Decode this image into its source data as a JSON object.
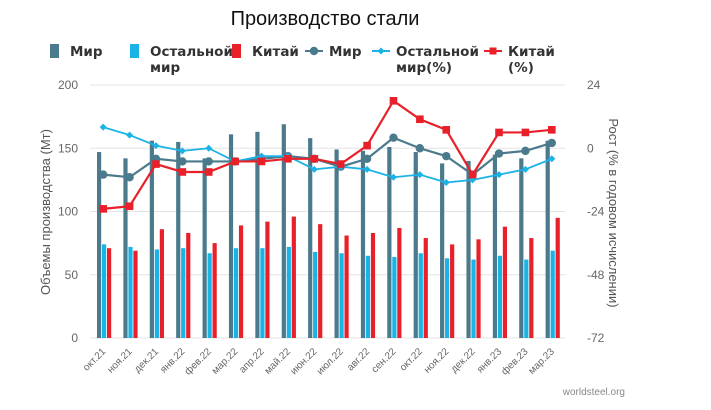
{
  "title": "Производство стали",
  "source": "worldsteel.org",
  "colors": {
    "world": "#4a7a8c",
    "rest": "#1ab3e6",
    "china": "#e8202a",
    "grid": "#e3e3e3"
  },
  "legend": [
    {
      "label": "Мир",
      "kind": "bar",
      "color": "world"
    },
    {
      "label": "Остальной мир",
      "kind": "bar",
      "color": "rest"
    },
    {
      "label": "Китай",
      "kind": "bar",
      "color": "china"
    },
    {
      "label": "Мир",
      "kind": "line-dot",
      "color": "world"
    },
    {
      "label": "Остальной мир(%)",
      "kind": "line-diamond",
      "color": "rest"
    },
    {
      "label": "Китай (%)",
      "kind": "line-square",
      "color": "china"
    }
  ],
  "chart_data": {
    "type": "bar",
    "title": "Производство стали",
    "categories": [
      "окт.21",
      "ноя.21",
      "дек.21",
      "янв.22",
      "фев.22",
      "мар.22",
      "апр.22",
      "май.22",
      "июн.22",
      "июл.22",
      "авг.22",
      "сен.22",
      "окт.22",
      "ноя.22",
      "дек.22",
      "янв.23",
      "фев.23",
      "мар.23"
    ],
    "ylabel": "Объемы производства (Мт)",
    "y2label": "Рост (% в годовом исчислении)",
    "ylim": [
      0,
      200
    ],
    "yticks": [
      0,
      50,
      100,
      150,
      200
    ],
    "y2lim": [
      -72,
      24
    ],
    "y2ticks": [
      -72,
      -48,
      -24,
      0,
      24
    ],
    "grid": true,
    "legend_position": "top",
    "series": [
      {
        "name": "Мир",
        "type": "bar",
        "axis": "left",
        "values": [
          147,
          142,
          156,
          155,
          142,
          161,
          163,
          169,
          158,
          149,
          148,
          151,
          147,
          138,
          140,
          145,
          142,
          156
        ]
      },
      {
        "name": "Остальной мир",
        "type": "bar",
        "axis": "left",
        "values": [
          74,
          72,
          70,
          71,
          67,
          71,
          71,
          72,
          68,
          67,
          65,
          64,
          67,
          63,
          62,
          65,
          62,
          69
        ]
      },
      {
        "name": "Китай",
        "type": "bar",
        "axis": "left",
        "values": [
          71,
          69,
          86,
          83,
          75,
          89,
          92,
          96,
          90,
          81,
          83,
          87,
          79,
          74,
          78,
          88,
          79,
          95
        ]
      },
      {
        "name": "Мир",
        "type": "line",
        "axis": "right",
        "values": [
          -10,
          -11,
          -4,
          -5,
          -5,
          -5,
          -4,
          -3,
          -4,
          -7,
          -4,
          4,
          0,
          -3,
          -10,
          -2,
          -1,
          2
        ]
      },
      {
        "name": "Остальной мир(%)",
        "type": "line",
        "axis": "right",
        "values": [
          8,
          5,
          1,
          -1,
          0,
          -5,
          -3,
          -3,
          -8,
          -7,
          -8,
          -11,
          -10,
          -13,
          -12,
          -10,
          -8,
          -4
        ]
      },
      {
        "name": "Китай (%)",
        "type": "line",
        "axis": "right",
        "values": [
          -23,
          -22,
          -6,
          -9,
          -9,
          -5,
          -5,
          -4,
          -4,
          -6,
          1,
          18,
          11,
          7,
          -10,
          6,
          6,
          7
        ]
      }
    ]
  }
}
